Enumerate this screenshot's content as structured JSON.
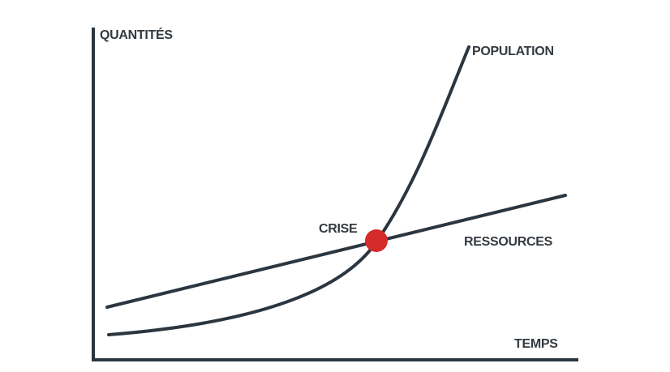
{
  "labels": {
    "y_axis": "QUANTITÉS",
    "x_axis": "TEMPS",
    "population": "POPULATION",
    "resources": "RESSOURCES",
    "crisis": "CRISE"
  },
  "colors": {
    "line": "#2b3640",
    "text": "#333a40",
    "crisis_point": "#d42a2a",
    "background": "#ffffff"
  }
}
